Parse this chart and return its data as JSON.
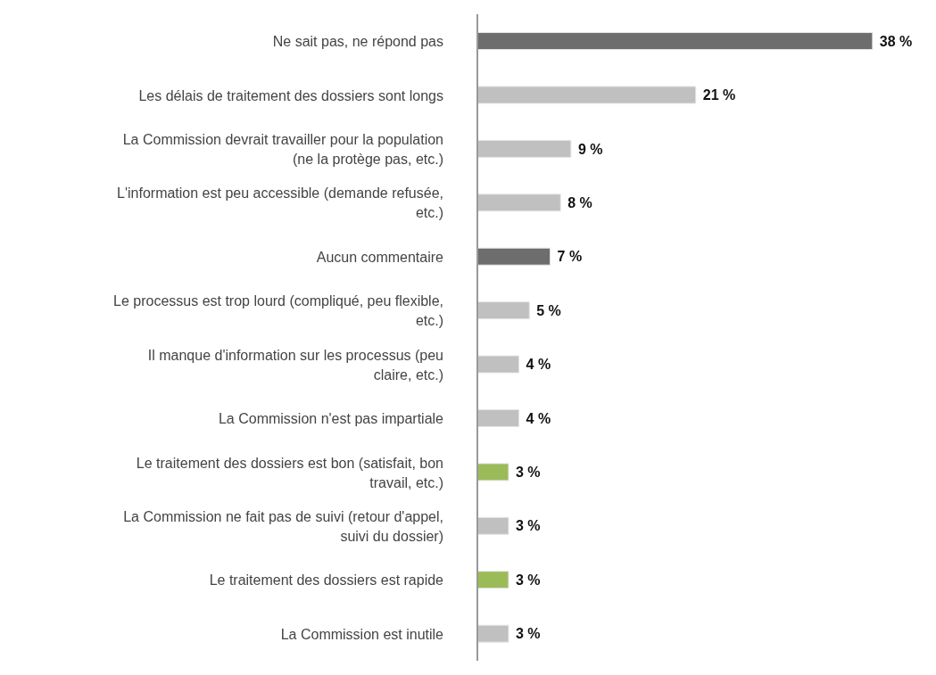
{
  "chart_data": {
    "type": "bar",
    "orientation": "horizontal",
    "categories": [
      "Ne sait pas, ne répond pas",
      "Les délais de traitement des dossiers sont longs",
      "La Commission devrait travailler pour la population (ne la protège pas, etc.)",
      "L'information est peu accessible (demande refusée, etc.)",
      "Aucun commentaire",
      "Le processus est trop lourd (compliqué, peu flexible, etc.)",
      "Il manque d'information sur les processus (peu claire, etc.)",
      "La Commission n'est pas impartiale",
      "Le traitement des dossiers est bon (satisfait, bon travail, etc.)",
      "La Commission ne fait pas de suivi (retour d'appel, suivi du dossier)",
      "Le traitement des dossiers est rapide",
      "La Commission est inutile"
    ],
    "values": [
      38,
      21,
      9,
      8,
      7,
      5,
      4,
      4,
      3,
      3,
      3,
      3
    ],
    "colors": [
      "#6d6d6d",
      "#c0c0c0",
      "#c0c0c0",
      "#c0c0c0",
      "#6d6d6d",
      "#c0c0c0",
      "#c0c0c0",
      "#c0c0c0",
      "#9bbb59",
      "#c0c0c0",
      "#9bbb59",
      "#c0c0c0"
    ],
    "value_labels": [
      "38 %",
      "21 %",
      "9 %",
      "8 %",
      "7 %",
      "5 %",
      "4 %",
      "4 %",
      "3 %",
      "3 %",
      "3 %",
      "3 %"
    ],
    "grid": false,
    "legend": false
  }
}
